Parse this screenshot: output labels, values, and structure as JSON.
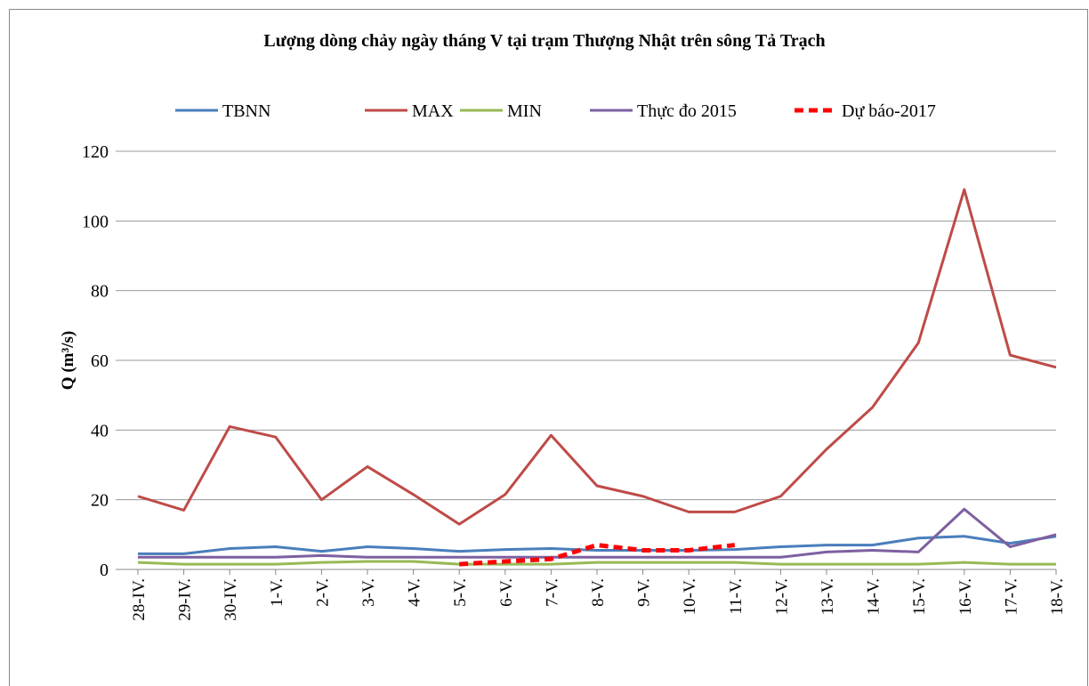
{
  "chart_data": {
    "type": "line",
    "title": "Lượng dòng chảy ngày tháng V tại trạm Thượng Nhật trên sông Tả Trạch",
    "ylabel": "Q (m³/s)",
    "categories": [
      "28-IV.",
      "29-IV.",
      "30-IV.",
      "1-V.",
      "2-V.",
      "3-V.",
      "4-V.",
      "5-V.",
      "6-V.",
      "7-V.",
      "8-V.",
      "9-V.",
      "10-V.",
      "11-V.",
      "12-V.",
      "13-V.",
      "14-V.",
      "15-V.",
      "16-V.",
      "17-V.",
      "18-V."
    ],
    "series": [
      {
        "name": "TBNN",
        "color": "#4a7ebb",
        "style": "solid",
        "values": [
          4.5,
          4.5,
          6,
          6.5,
          5.2,
          6.5,
          6,
          5.2,
          5.7,
          6,
          5.5,
          5.5,
          5.5,
          5.7,
          6.5,
          7,
          7,
          9,
          9.5,
          7.5,
          9.5
        ]
      },
      {
        "name": "MAX",
        "color": "#be4b48",
        "style": "solid",
        "values": [
          21,
          17,
          41,
          38,
          20,
          29.5,
          21.5,
          13,
          21.5,
          38.5,
          24,
          21,
          16.5,
          16.5,
          21,
          34.5,
          46.5,
          65,
          109,
          61.5,
          58
        ]
      },
      {
        "name": "MIN",
        "color": "#98b954",
        "style": "solid",
        "values": [
          2,
          1.5,
          1.5,
          1.5,
          2,
          2.3,
          2.3,
          1.5,
          1.5,
          1.5,
          2,
          2,
          2,
          2,
          1.5,
          1.5,
          1.5,
          1.5,
          2,
          1.5,
          1.5
        ]
      },
      {
        "name": "Thực đo 2015",
        "color": "#7d60a0",
        "style": "solid",
        "values": [
          3.5,
          3.5,
          3.5,
          3.5,
          4,
          3.5,
          3.5,
          3.5,
          3.5,
          3.5,
          3.5,
          3.5,
          3.5,
          3.5,
          3.5,
          5,
          5.5,
          5,
          17.3,
          6.5,
          10
        ]
      },
      {
        "name": "Dự báo-2017",
        "color": "#ff0000",
        "style": "dashed",
        "values": [
          null,
          null,
          null,
          null,
          null,
          null,
          null,
          1.5,
          2.3,
          3,
          7,
          5.5,
          5.5,
          7,
          null,
          null,
          null,
          null,
          null,
          null,
          null
        ]
      }
    ],
    "ylim": [
      0,
      120
    ],
    "yticks": [
      0,
      20,
      40,
      60,
      80,
      100,
      120
    ],
    "grid": true,
    "legend": "top"
  }
}
